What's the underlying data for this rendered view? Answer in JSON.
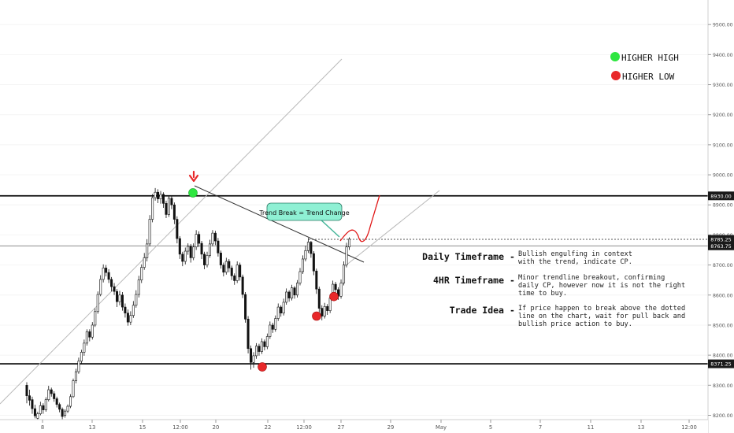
{
  "chart_data": {
    "type": "candlestick",
    "y_axis": {
      "ticks": [
        8200,
        8300,
        8400,
        8500,
        8600,
        8700,
        8800,
        8900,
        9000,
        9100,
        9200,
        9300,
        9400,
        9500
      ],
      "tick_labels": [
        "8200.00",
        "8300.00",
        "8400.00",
        "8500.00",
        "8600.00",
        "8700.00",
        "8800.00",
        "8900.00",
        "9000.00",
        "9100.00",
        "9200.00",
        "9300.00",
        "9400.00",
        "9500.00"
      ],
      "ylim": [
        8180,
        9580
      ]
    },
    "x_axis": {
      "tick_labels": [
        "8",
        "13",
        "15",
        "12:00",
        "20",
        "22",
        "12:00",
        "27",
        "29",
        "May",
        "5",
        "7",
        "11",
        "13",
        "12:00"
      ]
    },
    "price_levels": [
      {
        "value": 8930.0,
        "label": "8930.00",
        "style": "solid-thick"
      },
      {
        "value": 8371.25,
        "label": "8371.25",
        "style": "solid-thick"
      },
      {
        "value": 8785.25,
        "label": "8785.25",
        "style": "dashed"
      },
      {
        "value": 8763.75,
        "label": "8763.75",
        "style": "solid-thin"
      }
    ],
    "swing_markers": [
      {
        "type": "higher-high",
        "price": 8940
      },
      {
        "type": "higher-low",
        "price": 8361
      },
      {
        "type": "higher-low",
        "price": 8530
      },
      {
        "type": "higher-low",
        "price": 8595
      }
    ],
    "candles": [
      [
        8300,
        8265,
        8310,
        8240
      ],
      [
        8265,
        8250,
        8285,
        8232
      ],
      [
        8252,
        8222,
        8262,
        8205
      ],
      [
        8222,
        8198,
        8235,
        8190
      ],
      [
        8190,
        8205,
        8212,
        8185
      ],
      [
        8205,
        8232,
        8245,
        8200
      ],
      [
        8232,
        8218,
        8240,
        8205
      ],
      [
        8218,
        8252,
        8260,
        8212
      ],
      [
        8252,
        8285,
        8298,
        8246
      ],
      [
        8285,
        8272,
        8292,
        8262
      ],
      [
        8272,
        8255,
        8280,
        8245
      ],
      [
        8255,
        8236,
        8262,
        8226
      ],
      [
        8236,
        8220,
        8242,
        8210
      ],
      [
        8220,
        8196,
        8226,
        8186
      ],
      [
        8200,
        8214,
        8220,
        8192
      ],
      [
        8214,
        8230,
        8236,
        8208
      ],
      [
        8230,
        8262,
        8270,
        8224
      ],
      [
        8262,
        8315,
        8322,
        8258
      ],
      [
        8315,
        8345,
        8355,
        8306
      ],
      [
        8345,
        8380,
        8392,
        8338
      ],
      [
        8380,
        8410,
        8418,
        8370
      ],
      [
        8410,
        8440,
        8452,
        8398
      ],
      [
        8440,
        8478,
        8486,
        8432
      ],
      [
        8478,
        8460,
        8486,
        8446
      ],
      [
        8460,
        8500,
        8510,
        8452
      ],
      [
        8500,
        8545,
        8556,
        8494
      ],
      [
        8545,
        8602,
        8612,
        8538
      ],
      [
        8602,
        8652,
        8666,
        8596
      ],
      [
        8652,
        8690,
        8702,
        8642
      ],
      [
        8690,
        8675,
        8700,
        8662
      ],
      [
        8675,
        8652,
        8686,
        8640
      ],
      [
        8652,
        8628,
        8660,
        8612
      ],
      [
        8628,
        8612,
        8640,
        8600
      ],
      [
        8612,
        8578,
        8620,
        8560
      ],
      [
        8578,
        8600,
        8614,
        8566
      ],
      [
        8600,
        8560,
        8610,
        8548
      ],
      [
        8560,
        8540,
        8572,
        8525
      ],
      [
        8540,
        8510,
        8552,
        8498
      ],
      [
        8510,
        8532,
        8546,
        8500
      ],
      [
        8532,
        8566,
        8580,
        8524
      ],
      [
        8566,
        8602,
        8616,
        8558
      ],
      [
        8602,
        8650,
        8664,
        8592
      ],
      [
        8650,
        8692,
        8702,
        8640
      ],
      [
        8692,
        8724,
        8740,
        8684
      ],
      [
        8724,
        8770,
        8786,
        8712
      ],
      [
        8770,
        8852,
        8866,
        8762
      ],
      [
        8852,
        8924,
        8936,
        8842
      ],
      [
        8924,
        8942,
        8956,
        8914
      ],
      [
        8942,
        8920,
        8952,
        8906
      ],
      [
        8920,
        8935,
        8946,
        8904
      ],
      [
        8935,
        8905,
        8942,
        8890
      ],
      [
        8905,
        8868,
        8914,
        8856
      ],
      [
        8868,
        8922,
        8932,
        8860
      ],
      [
        8922,
        8900,
        8930,
        8886
      ],
      [
        8900,
        8852,
        8908,
        8836
      ],
      [
        8852,
        8788,
        8862,
        8772
      ],
      [
        8788,
        8736,
        8796,
        8720
      ],
      [
        8736,
        8712,
        8744,
        8696
      ],
      [
        8712,
        8746,
        8758,
        8702
      ],
      [
        8746,
        8762,
        8772,
        8734
      ],
      [
        8762,
        8724,
        8770,
        8708
      ],
      [
        8724,
        8760,
        8772,
        8716
      ],
      [
        8760,
        8802,
        8816,
        8750
      ],
      [
        8802,
        8772,
        8812,
        8760
      ],
      [
        8772,
        8736,
        8780,
        8720
      ],
      [
        8736,
        8700,
        8744,
        8686
      ],
      [
        8700,
        8732,
        8744,
        8692
      ],
      [
        8732,
        8770,
        8784,
        8724
      ],
      [
        8770,
        8806,
        8816,
        8762
      ],
      [
        8806,
        8780,
        8814,
        8766
      ],
      [
        8780,
        8740,
        8790,
        8728
      ],
      [
        8740,
        8700,
        8748,
        8688
      ],
      [
        8700,
        8676,
        8708,
        8662
      ],
      [
        8676,
        8712,
        8724,
        8668
      ],
      [
        8712,
        8690,
        8720,
        8676
      ],
      [
        8690,
        8664,
        8698,
        8650
      ],
      [
        8664,
        8648,
        8672,
        8634
      ],
      [
        8648,
        8700,
        8712,
        8640
      ],
      [
        8700,
        8660,
        8708,
        8648
      ],
      [
        8660,
        8602,
        8668,
        8590
      ],
      [
        8602,
        8520,
        8610,
        8508
      ],
      [
        8520,
        8422,
        8530,
        8406
      ],
      [
        8422,
        8376,
        8432,
        8352
      ],
      [
        8376,
        8398,
        8410,
        8358
      ],
      [
        8398,
        8430,
        8440,
        8388
      ],
      [
        8430,
        8412,
        8438,
        8398
      ],
      [
        8412,
        8445,
        8456,
        8404
      ],
      [
        8445,
        8428,
        8452,
        8416
      ],
      [
        8428,
        8462,
        8472,
        8420
      ],
      [
        8462,
        8500,
        8512,
        8454
      ],
      [
        8500,
        8486,
        8508,
        8474
      ],
      [
        8486,
        8522,
        8532,
        8478
      ],
      [
        8522,
        8560,
        8572,
        8514
      ],
      [
        8560,
        8540,
        8566,
        8528
      ],
      [
        8540,
        8576,
        8588,
        8532
      ],
      [
        8576,
        8610,
        8622,
        8568
      ],
      [
        8610,
        8590,
        8616,
        8578
      ],
      [
        8590,
        8624,
        8634,
        8582
      ],
      [
        8624,
        8600,
        8630,
        8588
      ],
      [
        8600,
        8640,
        8650,
        8592
      ],
      [
        8640,
        8678,
        8690,
        8632
      ],
      [
        8678,
        8720,
        8732,
        8670
      ],
      [
        8720,
        8748,
        8764,
        8712
      ],
      [
        8748,
        8776,
        8790,
        8740
      ],
      [
        8776,
        8738,
        8780,
        8724
      ],
      [
        8738,
        8680,
        8746,
        8666
      ],
      [
        8680,
        8620,
        8688,
        8604
      ],
      [
        8620,
        8556,
        8628,
        8540
      ],
      [
        8556,
        8530,
        8566,
        8516
      ],
      [
        8530,
        8562,
        8574,
        8522
      ],
      [
        8562,
        8548,
        8570,
        8534
      ],
      [
        8548,
        8590,
        8602,
        8540
      ],
      [
        8590,
        8636,
        8648,
        8582
      ],
      [
        8636,
        8618,
        8644,
        8604
      ],
      [
        8618,
        8596,
        8626,
        8584
      ],
      [
        8596,
        8640,
        8652,
        8588
      ],
      [
        8640,
        8700,
        8712,
        8632
      ],
      [
        8700,
        8760,
        8774,
        8692
      ],
      [
        8760,
        8786,
        8792,
        8750
      ]
    ]
  },
  "legend": {
    "items": [
      {
        "label": "HIGHER HIGH",
        "color": "#2ee640"
      },
      {
        "label": "HIGHER LOW",
        "color": "#e8282a"
      }
    ]
  },
  "callout": {
    "text": "Trend Break = Trend Change",
    "fill": "#8ff0d4"
  },
  "notes": [
    {
      "title": "Daily Timeframe",
      "sep": "-",
      "lines": [
        "Bullish engulfing in context",
        "with the trend, indicate CP."
      ]
    },
    {
      "title": "4HR Timeframe",
      "sep": "-",
      "lines": [
        "Minor trendline breakout, confirming",
        "daily CP, however now it is not the right",
        "time to buy."
      ]
    },
    {
      "title": "Trade Idea",
      "sep": "-",
      "lines": [
        "If price happen to break above the dotted",
        "line on the chart, wait for pull back and",
        "bullish price action to buy."
      ]
    }
  ],
  "colors": {
    "bull": "#2b2b2b",
    "bear": "#111111",
    "accent_red": "#e8282a",
    "accent_green": "#2ee640"
  }
}
